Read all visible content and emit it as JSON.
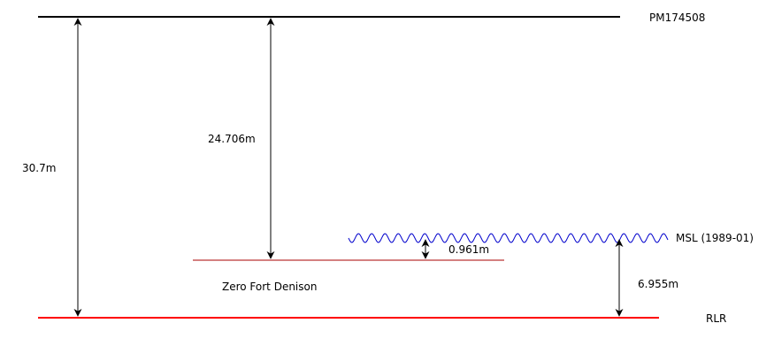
{
  "levels": {
    "pm": {
      "label": "PM174508"
    },
    "msl": {
      "label": "MSL (1989-01)"
    },
    "zfd": {
      "label": "Zero Fort Denison"
    },
    "rlr": {
      "label": "RLR"
    }
  },
  "dimensions": {
    "pm_to_rlr": "30.7m",
    "pm_to_zfd": "24.706m",
    "zfd_to_msl": "0.961m",
    "msl_to_rlr": "6.955m"
  },
  "colors": {
    "pm_line": "#000000",
    "msl_wave": "#0000cc",
    "zfd_line": "#aa0000",
    "rlr_line": "#ff0000",
    "arrows": "#000000"
  }
}
